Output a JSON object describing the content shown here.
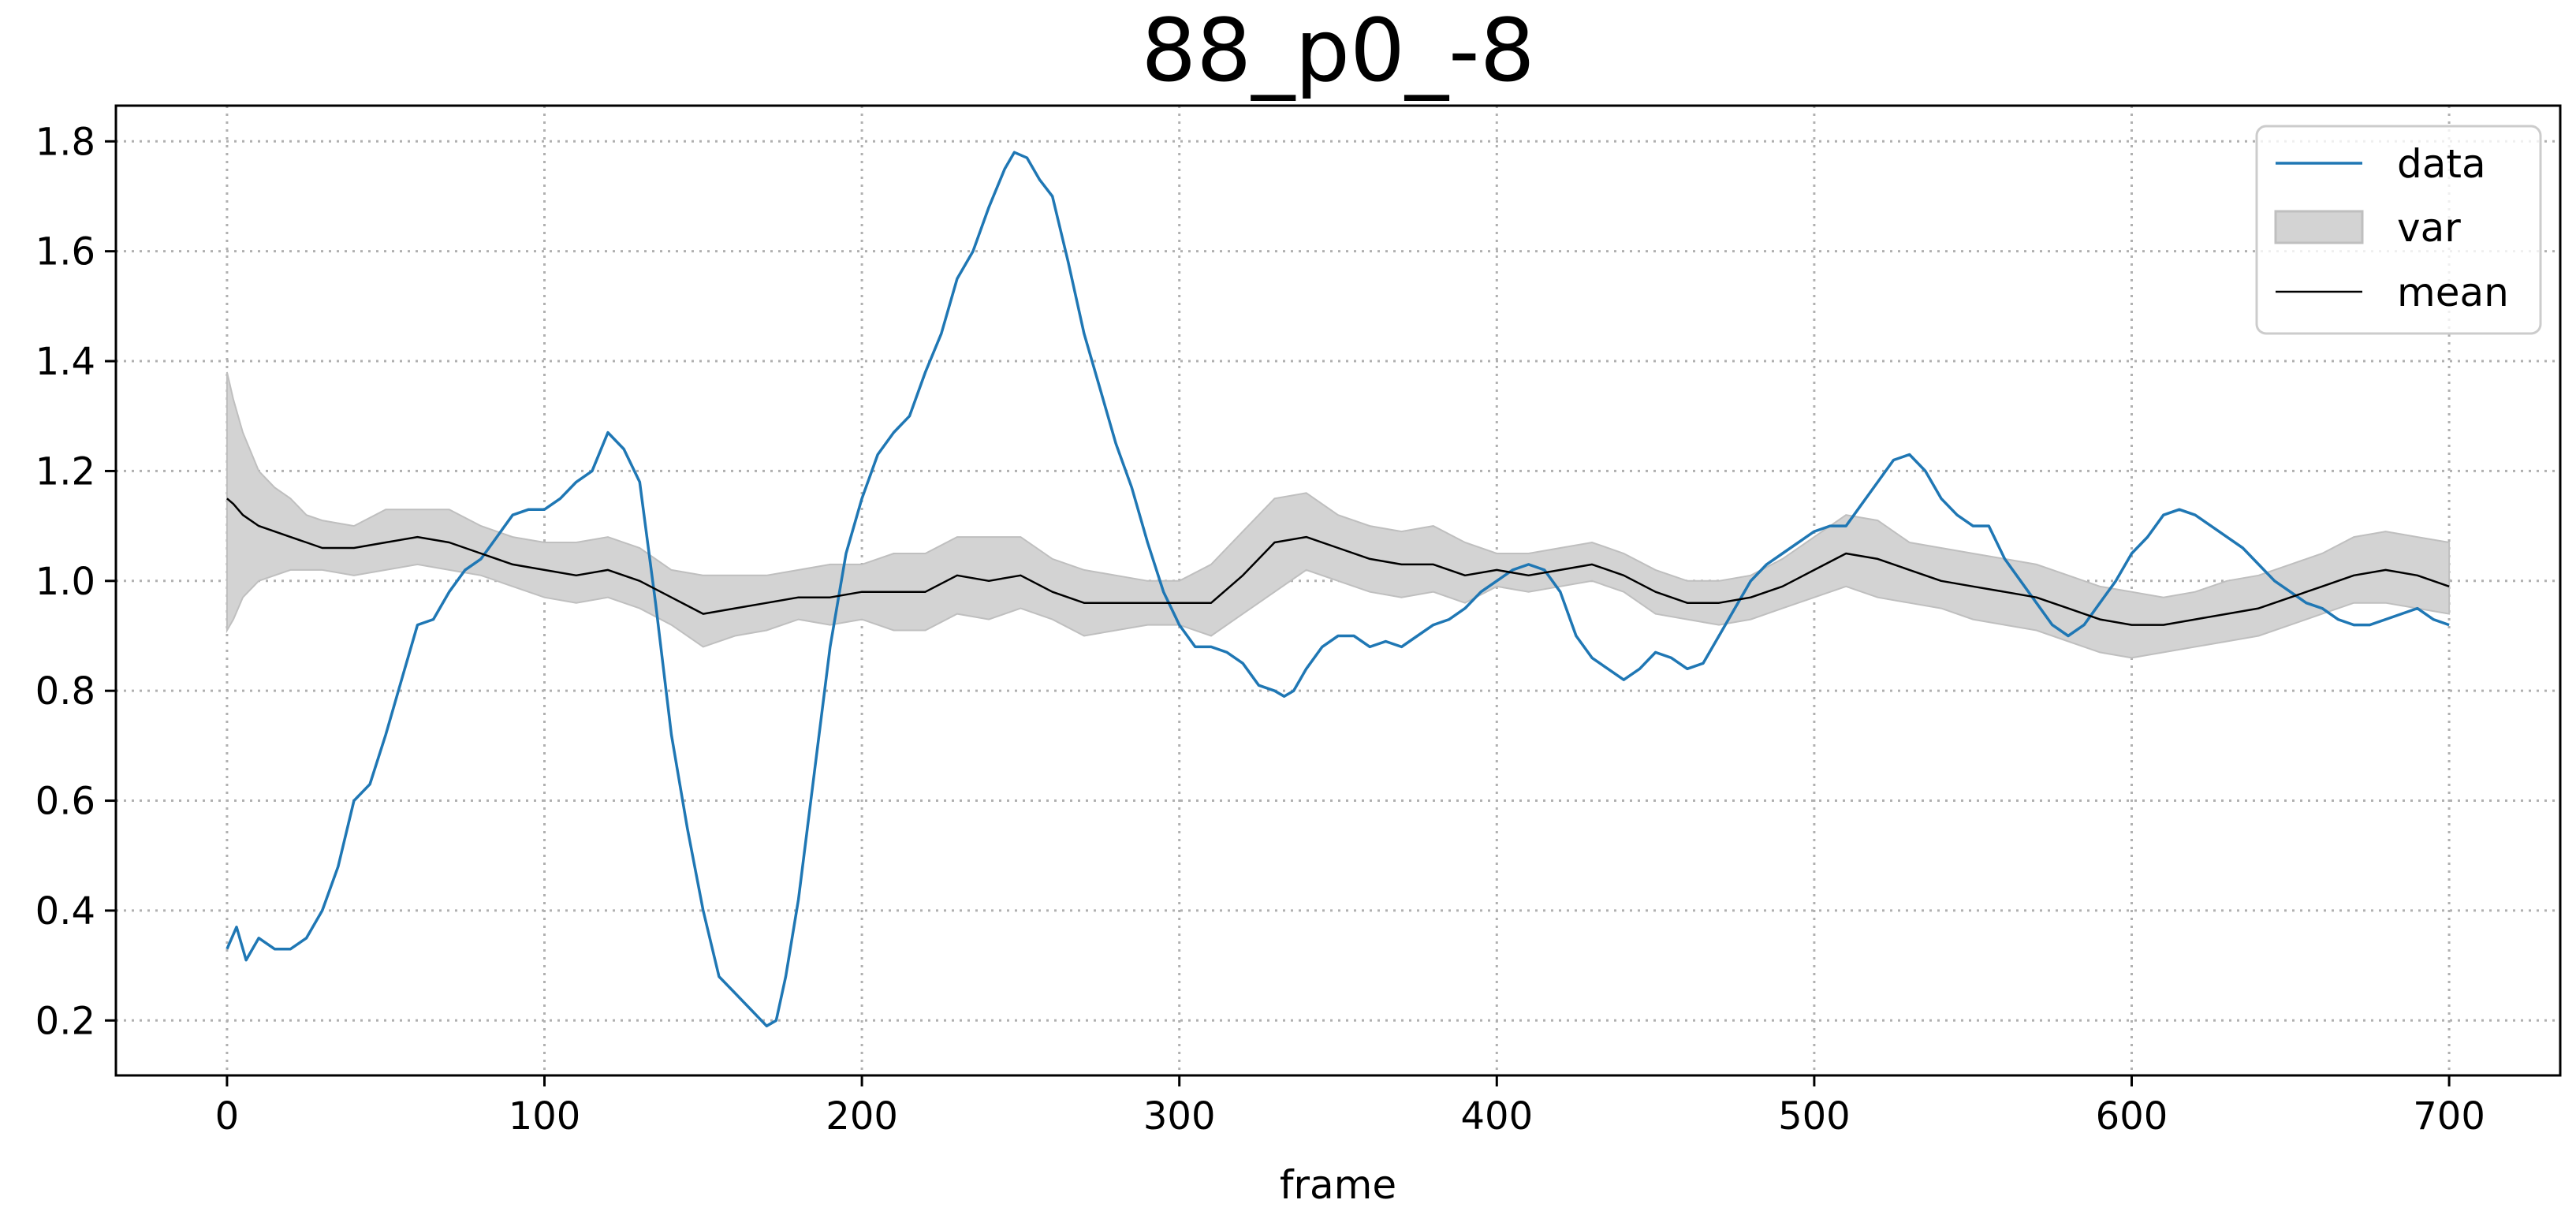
{
  "chart_data": {
    "type": "line",
    "title": "88_p0_-8",
    "xlabel": "frame",
    "ylabel": "",
    "xlim": [
      -35,
      735
    ],
    "ylim": [
      0.1,
      1.865
    ],
    "xticks": [
      0,
      100,
      200,
      300,
      400,
      500,
      600,
      700
    ],
    "yticks": [
      0.2,
      0.4,
      0.6,
      0.8,
      1.0,
      1.2,
      1.4,
      1.6,
      1.8
    ],
    "xtick_labels": [
      "0",
      "100",
      "200",
      "300",
      "400",
      "500",
      "600",
      "700"
    ],
    "ytick_labels": [
      "0.2",
      "0.4",
      "0.6",
      "0.8",
      "1.0",
      "1.2",
      "1.4",
      "1.6",
      "1.8"
    ],
    "grid": true,
    "legend": {
      "placement": "top-right",
      "entries": [
        "data",
        "var",
        "mean"
      ]
    },
    "colors": {
      "data": "#1f77b4",
      "mean": "#000000",
      "var_fill": "#d3d3d3",
      "var_edge": "#bfbfbf"
    },
    "series": [
      {
        "name": "data",
        "kind": "line",
        "x": [
          0,
          3,
          6,
          10,
          15,
          20,
          25,
          30,
          35,
          40,
          45,
          50,
          55,
          60,
          65,
          70,
          75,
          80,
          85,
          90,
          95,
          100,
          105,
          110,
          115,
          120,
          125,
          130,
          135,
          140,
          145,
          150,
          155,
          160,
          165,
          170,
          173,
          176,
          180,
          185,
          190,
          195,
          200,
          205,
          210,
          215,
          220,
          225,
          230,
          235,
          240,
          245,
          248,
          252,
          256,
          260,
          265,
          270,
          275,
          280,
          285,
          290,
          295,
          300,
          305,
          310,
          315,
          320,
          325,
          330,
          333,
          336,
          340,
          345,
          350,
          355,
          360,
          365,
          370,
          375,
          380,
          385,
          390,
          395,
          400,
          405,
          410,
          415,
          420,
          425,
          430,
          435,
          440,
          445,
          450,
          455,
          460,
          465,
          470,
          475,
          480,
          485,
          490,
          495,
          500,
          505,
          510,
          515,
          520,
          525,
          530,
          535,
          540,
          545,
          550,
          555,
          560,
          565,
          570,
          575,
          580,
          585,
          590,
          595,
          600,
          605,
          610,
          615,
          620,
          625,
          630,
          635,
          640,
          645,
          650,
          655,
          660,
          665,
          670,
          675,
          680,
          685,
          690,
          695,
          700
        ],
        "y": [
          0.33,
          0.37,
          0.31,
          0.35,
          0.33,
          0.33,
          0.35,
          0.4,
          0.48,
          0.6,
          0.63,
          0.72,
          0.82,
          0.92,
          0.93,
          0.98,
          1.02,
          1.04,
          1.08,
          1.12,
          1.13,
          1.13,
          1.15,
          1.18,
          1.2,
          1.27,
          1.24,
          1.18,
          0.96,
          0.72,
          0.55,
          0.4,
          0.28,
          0.25,
          0.22,
          0.19,
          0.2,
          0.28,
          0.42,
          0.65,
          0.88,
          1.05,
          1.15,
          1.23,
          1.27,
          1.3,
          1.38,
          1.45,
          1.55,
          1.6,
          1.68,
          1.75,
          1.78,
          1.77,
          1.73,
          1.7,
          1.58,
          1.45,
          1.35,
          1.25,
          1.17,
          1.07,
          0.98,
          0.92,
          0.88,
          0.88,
          0.87,
          0.85,
          0.81,
          0.8,
          0.79,
          0.8,
          0.84,
          0.88,
          0.9,
          0.9,
          0.88,
          0.89,
          0.88,
          0.9,
          0.92,
          0.93,
          0.95,
          0.98,
          1.0,
          1.02,
          1.03,
          1.02,
          0.98,
          0.9,
          0.86,
          0.84,
          0.82,
          0.84,
          0.87,
          0.86,
          0.84,
          0.85,
          0.9,
          0.95,
          1.0,
          1.03,
          1.05,
          1.07,
          1.09,
          1.1,
          1.1,
          1.14,
          1.18,
          1.22,
          1.23,
          1.2,
          1.15,
          1.12,
          1.1,
          1.1,
          1.04,
          1.0,
          0.96,
          0.92,
          0.9,
          0.92,
          0.96,
          1.0,
          1.05,
          1.08,
          1.12,
          1.13,
          1.12,
          1.1,
          1.08,
          1.06,
          1.03,
          1.0,
          0.98,
          0.96,
          0.95,
          0.93,
          0.92,
          0.92,
          0.93,
          0.94,
          0.95,
          0.93,
          0.92
        ]
      },
      {
        "name": "var",
        "kind": "band",
        "x": [
          0,
          2,
          5,
          10,
          15,
          20,
          25,
          30,
          40,
          50,
          60,
          70,
          80,
          90,
          100,
          110,
          120,
          130,
          140,
          150,
          160,
          170,
          180,
          190,
          200,
          210,
          220,
          230,
          240,
          250,
          260,
          270,
          280,
          290,
          300,
          310,
          320,
          330,
          340,
          350,
          360,
          370,
          380,
          390,
          400,
          410,
          420,
          430,
          440,
          450,
          460,
          470,
          480,
          490,
          500,
          510,
          520,
          530,
          540,
          550,
          560,
          570,
          580,
          590,
          600,
          610,
          620,
          630,
          640,
          650,
          660,
          670,
          680,
          690,
          700
        ],
        "low": [
          0.91,
          0.93,
          0.97,
          1.0,
          1.01,
          1.02,
          1.02,
          1.02,
          1.01,
          1.02,
          1.03,
          1.02,
          1.01,
          0.99,
          0.97,
          0.96,
          0.97,
          0.95,
          0.92,
          0.88,
          0.9,
          0.91,
          0.93,
          0.92,
          0.93,
          0.91,
          0.91,
          0.94,
          0.93,
          0.95,
          0.93,
          0.9,
          0.91,
          0.92,
          0.92,
          0.9,
          0.94,
          0.98,
          1.02,
          1.0,
          0.98,
          0.97,
          0.98,
          0.96,
          0.99,
          0.98,
          0.99,
          1.0,
          0.98,
          0.94,
          0.93,
          0.92,
          0.93,
          0.95,
          0.97,
          0.99,
          0.97,
          0.96,
          0.95,
          0.93,
          0.92,
          0.91,
          0.89,
          0.87,
          0.86,
          0.87,
          0.88,
          0.89,
          0.9,
          0.92,
          0.94,
          0.96,
          0.96,
          0.95,
          0.94
        ],
        "high": [
          1.38,
          1.33,
          1.27,
          1.2,
          1.17,
          1.15,
          1.12,
          1.11,
          1.1,
          1.13,
          1.13,
          1.13,
          1.1,
          1.08,
          1.07,
          1.07,
          1.08,
          1.06,
          1.02,
          1.01,
          1.01,
          1.01,
          1.02,
          1.03,
          1.03,
          1.05,
          1.05,
          1.08,
          1.08,
          1.08,
          1.04,
          1.02,
          1.01,
          1.0,
          1.0,
          1.03,
          1.09,
          1.15,
          1.16,
          1.12,
          1.1,
          1.09,
          1.1,
          1.07,
          1.05,
          1.05,
          1.06,
          1.07,
          1.05,
          1.02,
          1.0,
          1.0,
          1.01,
          1.04,
          1.08,
          1.12,
          1.11,
          1.07,
          1.06,
          1.05,
          1.04,
          1.03,
          1.01,
          0.99,
          0.98,
          0.97,
          0.98,
          1.0,
          1.01,
          1.03,
          1.05,
          1.08,
          1.09,
          1.08,
          1.07
        ]
      },
      {
        "name": "mean",
        "kind": "line",
        "x": [
          0,
          2,
          5,
          10,
          15,
          20,
          25,
          30,
          40,
          50,
          60,
          70,
          80,
          90,
          100,
          110,
          120,
          130,
          140,
          150,
          160,
          170,
          180,
          190,
          200,
          210,
          220,
          230,
          240,
          250,
          260,
          270,
          280,
          290,
          300,
          310,
          320,
          330,
          340,
          350,
          360,
          370,
          380,
          390,
          400,
          410,
          420,
          430,
          440,
          450,
          460,
          470,
          480,
          490,
          500,
          510,
          520,
          530,
          540,
          550,
          560,
          570,
          580,
          590,
          600,
          610,
          620,
          630,
          640,
          650,
          660,
          670,
          680,
          690,
          700
        ],
        "y": [
          1.15,
          1.14,
          1.12,
          1.1,
          1.09,
          1.08,
          1.07,
          1.06,
          1.06,
          1.07,
          1.08,
          1.07,
          1.05,
          1.03,
          1.02,
          1.01,
          1.02,
          1.0,
          0.97,
          0.94,
          0.95,
          0.96,
          0.97,
          0.97,
          0.98,
          0.98,
          0.98,
          1.01,
          1.0,
          1.01,
          0.98,
          0.96,
          0.96,
          0.96,
          0.96,
          0.96,
          1.01,
          1.07,
          1.08,
          1.06,
          1.04,
          1.03,
          1.03,
          1.01,
          1.02,
          1.01,
          1.02,
          1.03,
          1.01,
          0.98,
          0.96,
          0.96,
          0.97,
          0.99,
          1.02,
          1.05,
          1.04,
          1.02,
          1.0,
          0.99,
          0.98,
          0.97,
          0.95,
          0.93,
          0.92,
          0.92,
          0.93,
          0.94,
          0.95,
          0.97,
          0.99,
          1.01,
          1.02,
          1.01,
          0.99
        ]
      }
    ]
  }
}
